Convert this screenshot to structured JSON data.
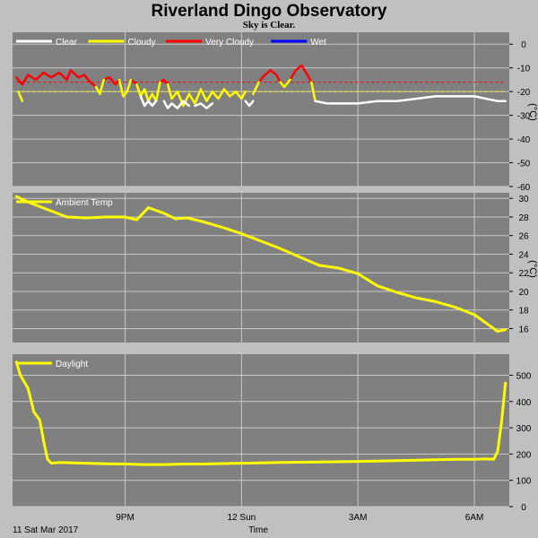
{
  "title": "Riverland Dingo Observatory",
  "subtitle": "Sky is Clear.",
  "x_axis": {
    "start_label": "11 Sat Mar 2017",
    "label": "Time",
    "ticks": [
      {
        "label": "9PM",
        "hour": 21
      },
      {
        "label": "12 Sun",
        "hour": 24
      },
      {
        "label": "3AM",
        "hour": 27
      },
      {
        "label": "6AM",
        "hour": 30
      }
    ],
    "range_hours": [
      18.1,
      30.9
    ]
  },
  "colors": {
    "panel": "#808080",
    "grid": "#c8c8c8",
    "clear": "#ffffff",
    "cloudy": "#ffff00",
    "very_cloudy": "#ff0000",
    "wet": "#0000ff",
    "temp": "#ffff00",
    "daylight": "#ffff00"
  },
  "chart_data": [
    {
      "type": "line",
      "id": "sky",
      "unit": "(°C)",
      "ylim": [
        -60,
        5
      ],
      "yticks": [
        0,
        -10,
        -20,
        -30,
        -40,
        -50,
        -60
      ],
      "grid": true,
      "legend_placement": "top-left",
      "legend": [
        {
          "name": "Clear",
          "color": "#ffffff"
        },
        {
          "name": "Cloudy",
          "color": "#ffff00"
        },
        {
          "name": "Very Cloudy",
          "color": "#ff0000"
        },
        {
          "name": "Wet",
          "color": "#0000ff"
        }
      ],
      "threshold_lines": [
        {
          "value": -16,
          "color": "#ff0000"
        },
        {
          "value": -20,
          "color": "#ffff00"
        }
      ],
      "series": [
        {
          "name": "Very Cloudy",
          "color": "#ff0000",
          "segments": [
            [
              [
                18.2,
                -14
              ],
              [
                18.35,
                -17
              ],
              [
                18.5,
                -13
              ],
              [
                18.7,
                -15
              ],
              [
                18.9,
                -12
              ],
              [
                19.1,
                -14
              ],
              [
                19.3,
                -12
              ],
              [
                19.5,
                -15
              ],
              [
                19.6,
                -11
              ],
              [
                19.8,
                -14
              ],
              [
                19.95,
                -13
              ],
              [
                20.1,
                -16
              ],
              [
                20.25,
                -18
              ]
            ],
            [
              [
                20.45,
                -15
              ],
              [
                20.6,
                -14
              ],
              [
                20.75,
                -17
              ],
              [
                20.85,
                -15
              ]
            ],
            [
              [
                21.15,
                -15
              ],
              [
                21.3,
                -17
              ]
            ],
            [
              [
                21.9,
                -16
              ],
              [
                22.0,
                -15
              ],
              [
                22.1,
                -17
              ]
            ],
            [
              [
                24.45,
                -16
              ],
              [
                24.6,
                -13
              ],
              [
                24.75,
                -11
              ],
              [
                24.9,
                -13
              ],
              [
                25.0,
                -16
              ]
            ],
            [
              [
                25.25,
                -15
              ],
              [
                25.4,
                -11
              ],
              [
                25.55,
                -9
              ],
              [
                25.7,
                -13
              ],
              [
                25.8,
                -16
              ]
            ]
          ]
        },
        {
          "name": "Cloudy",
          "color": "#ffff00",
          "segments": [
            [
              [
                18.25,
                -20
              ],
              [
                18.35,
                -24
              ]
            ],
            [
              [
                20.25,
                -18
              ],
              [
                20.35,
                -21
              ],
              [
                20.45,
                -15
              ]
            ],
            [
              [
                20.85,
                -15
              ],
              [
                20.95,
                -22
              ],
              [
                21.05,
                -20
              ],
              [
                21.15,
                -15
              ]
            ],
            [
              [
                21.3,
                -17
              ],
              [
                21.4,
                -22
              ],
              [
                21.5,
                -19
              ],
              [
                21.6,
                -24
              ],
              [
                21.7,
                -21
              ],
              [
                21.8,
                -24
              ],
              [
                21.9,
                -16
              ]
            ],
            [
              [
                22.1,
                -17
              ],
              [
                22.2,
                -23
              ],
              [
                22.35,
                -20
              ],
              [
                22.5,
                -26
              ],
              [
                22.65,
                -21
              ],
              [
                22.8,
                -25
              ],
              [
                22.95,
                -19
              ],
              [
                23.1,
                -24
              ],
              [
                23.25,
                -20
              ],
              [
                23.4,
                -23
              ],
              [
                23.55,
                -19
              ],
              [
                23.7,
                -22
              ],
              [
                23.85,
                -20
              ],
              [
                24.0,
                -23
              ],
              [
                24.1,
                -20
              ]
            ],
            [
              [
                24.3,
                -21
              ],
              [
                24.45,
                -16
              ]
            ],
            [
              [
                25.0,
                -16
              ],
              [
                25.1,
                -18
              ],
              [
                25.25,
                -15
              ]
            ],
            [
              [
                25.8,
                -16
              ],
              [
                25.9,
                -24
              ]
            ]
          ]
        },
        {
          "name": "Clear",
          "color": "#ffffff",
          "segments": [
            [
              [
                21.4,
                -22
              ],
              [
                21.5,
                -26
              ],
              [
                21.6,
                -24
              ],
              [
                21.7,
                -26
              ],
              [
                21.8,
                -24
              ]
            ],
            [
              [
                22.0,
                -24
              ],
              [
                22.1,
                -27
              ],
              [
                22.2,
                -25
              ],
              [
                22.35,
                -27
              ],
              [
                22.5,
                -24
              ],
              [
                22.65,
                -26
              ]
            ],
            [
              [
                22.8,
                -26
              ],
              [
                22.95,
                -25
              ],
              [
                23.1,
                -27
              ],
              [
                23.25,
                -25
              ]
            ],
            [
              [
                24.1,
                -24
              ],
              [
                24.2,
                -26
              ],
              [
                24.3,
                -24
              ]
            ],
            [
              [
                25.9,
                -24
              ],
              [
                26.2,
                -25
              ],
              [
                26.6,
                -25
              ],
              [
                27.0,
                -25
              ],
              [
                27.5,
                -24
              ],
              [
                28.0,
                -24
              ],
              [
                28.5,
                -23
              ],
              [
                29.0,
                -22
              ],
              [
                29.5,
                -22
              ],
              [
                30.0,
                -22
              ],
              [
                30.3,
                -23
              ],
              [
                30.6,
                -24
              ],
              [
                30.8,
                -24
              ]
            ]
          ]
        },
        {
          "name": "Wet",
          "color": "#0000ff",
          "segments": []
        }
      ]
    },
    {
      "type": "line",
      "id": "ambient",
      "unit": "(°C)",
      "ylim": [
        14.5,
        30.6
      ],
      "yticks": [
        30,
        28,
        26,
        24,
        22,
        20,
        18,
        16
      ],
      "grid": true,
      "legend_placement": "top-left",
      "legend": [
        {
          "name": "Ambient Temp",
          "color": "#ffff00"
        }
      ],
      "series": [
        {
          "name": "Ambient Temp",
          "color": "#ffff00",
          "x": [
            18.2,
            18.5,
            19.0,
            19.5,
            20.0,
            20.5,
            21.0,
            21.3,
            21.6,
            22.0,
            22.3,
            22.6,
            23.0,
            23.5,
            24.0,
            24.5,
            25.0,
            25.5,
            26.0,
            26.5,
            27.0,
            27.5,
            28.0,
            28.5,
            29.0,
            29.5,
            30.0,
            30.3,
            30.6,
            30.8
          ],
          "values": [
            30.2,
            29.6,
            28.8,
            28.0,
            27.9,
            28.0,
            28.0,
            27.7,
            29.0,
            28.4,
            27.8,
            27.9,
            27.5,
            26.9,
            26.2,
            25.4,
            24.6,
            23.7,
            22.8,
            22.5,
            21.9,
            20.6,
            19.9,
            19.3,
            18.9,
            18.3,
            17.5,
            16.6,
            15.7,
            15.9
          ]
        }
      ]
    },
    {
      "type": "line",
      "id": "daylight",
      "unit": "",
      "ylim": [
        0,
        580
      ],
      "yticks": [
        500,
        400,
        300,
        200,
        100,
        0
      ],
      "grid": true,
      "legend_placement": "top-left",
      "legend": [
        {
          "name": "Daylight",
          "color": "#ffff00"
        }
      ],
      "series": [
        {
          "name": "Daylight",
          "color": "#ffff00",
          "x": [
            18.2,
            18.3,
            18.5,
            18.65,
            18.8,
            18.9,
            19.0,
            19.1,
            19.3,
            19.6,
            20.0,
            20.5,
            21.0,
            21.5,
            22.0,
            22.5,
            23.0,
            24.0,
            25.0,
            26.0,
            27.0,
            28.0,
            29.0,
            29.5,
            30.0,
            30.3,
            30.5,
            30.6,
            30.7,
            30.8
          ],
          "values": [
            550,
            500,
            450,
            360,
            330,
            250,
            180,
            165,
            168,
            167,
            165,
            163,
            162,
            160,
            160,
            162,
            162,
            165,
            168,
            170,
            172,
            175,
            178,
            180,
            180,
            182,
            180,
            210,
            320,
            470
          ]
        }
      ]
    }
  ]
}
